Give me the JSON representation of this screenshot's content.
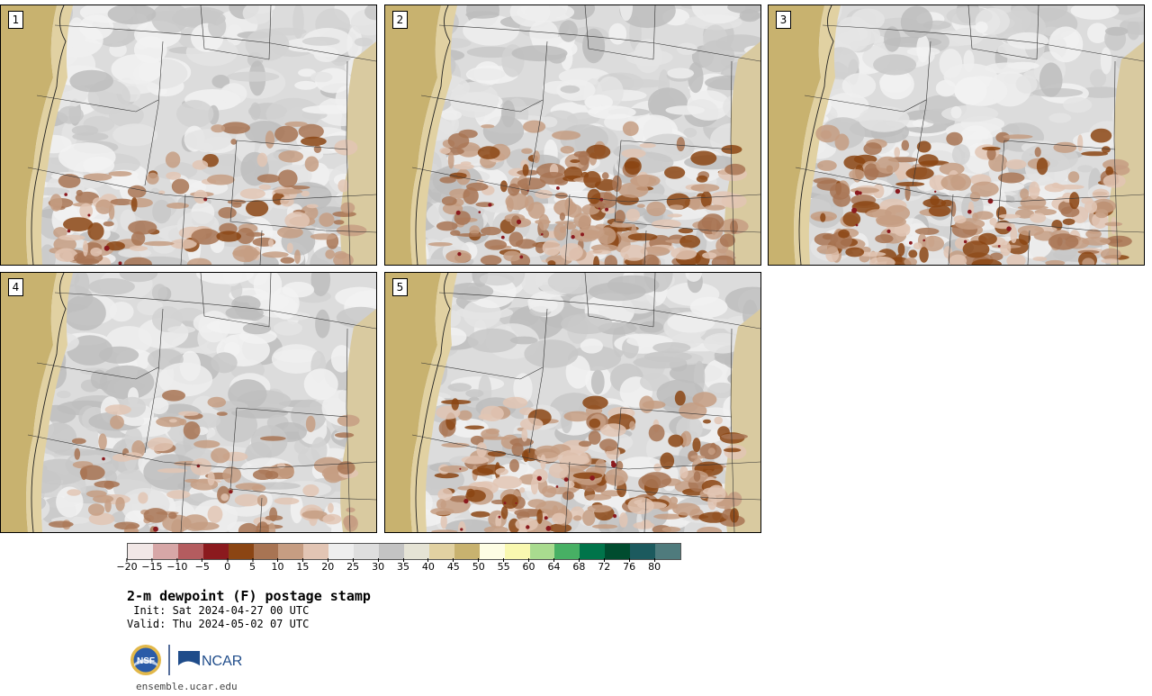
{
  "figure": {
    "title": "2-m dewpoint (F) postage stamp",
    "init": " Init: Sat 2024-04-27 00 UTC",
    "valid": "Valid: Thu 2024-05-02 07 UTC",
    "site": "ensemble.ucar.edu",
    "logos": {
      "nsf": "NSF",
      "ncar": "NCAR"
    }
  },
  "panels": [
    {
      "label": "1",
      "dry_level": 0.3
    },
    {
      "label": "2",
      "dry_level": 0.75
    },
    {
      "label": "3",
      "dry_level": 0.7
    },
    {
      "label": "4",
      "dry_level": 0.22
    },
    {
      "label": "5",
      "dry_level": 0.8
    }
  ],
  "colorbar": {
    "ticks": [
      "−20",
      "−15",
      "−10",
      "−5",
      "0",
      "5",
      "10",
      "15",
      "20",
      "25",
      "30",
      "35",
      "40",
      "45",
      "50",
      "55",
      "60",
      "64",
      "68",
      "72",
      "76",
      "80"
    ],
    "colors": [
      "#f1e7e6",
      "#d7a7a7",
      "#b45c5f",
      "#8b1a1e",
      "#8b4513",
      "#a87453",
      "#c69d82",
      "#e2c5b4",
      "#eeeeee",
      "#dedede",
      "#c3c3c3",
      "#e5e3d5",
      "#e1d1a2",
      "#c8b26f",
      "#fefde4",
      "#f9f8b0",
      "#a9db8f",
      "#47b064",
      "#00744a",
      "#004c2f",
      "#1c5a5e",
      "#4f7b7d"
    ]
  }
}
